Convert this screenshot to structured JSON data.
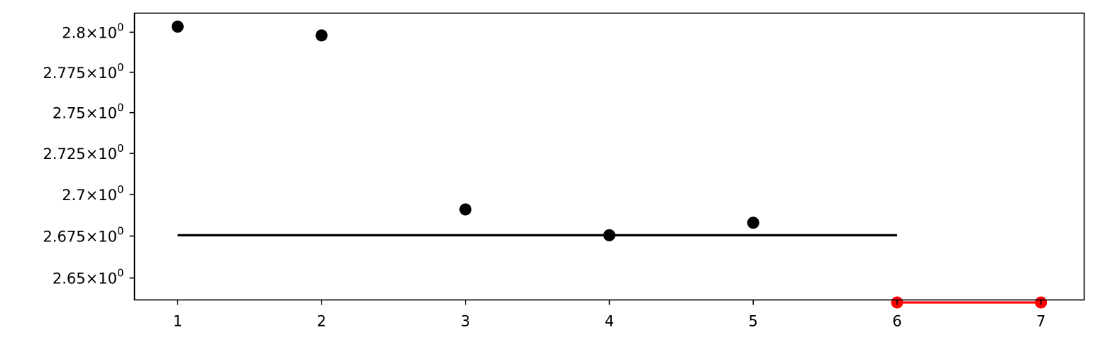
{
  "chart_data": {
    "type": "scatter",
    "title": "",
    "xlabel": "",
    "ylabel": "",
    "yscale": "log",
    "grid": false,
    "xlim": [
      0.7,
      7.3
    ],
    "ylim": [
      2.637,
      2.812
    ],
    "x_ticks": [
      {
        "value": 1,
        "label": "1"
      },
      {
        "value": 2,
        "label": "2"
      },
      {
        "value": 3,
        "label": "3"
      },
      {
        "value": 4,
        "label": "4"
      },
      {
        "value": 5,
        "label": "5"
      },
      {
        "value": 6,
        "label": "6"
      },
      {
        "value": 7,
        "label": "7"
      }
    ],
    "y_ticks": [
      {
        "value": 2.65,
        "mantissa": "2.65",
        "times": "×",
        "base": "10",
        "exponent": "0"
      },
      {
        "value": 2.675,
        "mantissa": "2.675",
        "times": "×",
        "base": "10",
        "exponent": "0"
      },
      {
        "value": 2.7,
        "mantissa": "2.7",
        "times": "×",
        "base": "10",
        "exponent": "0"
      },
      {
        "value": 2.725,
        "mantissa": "2.725",
        "times": "×",
        "base": "10",
        "exponent": "0"
      },
      {
        "value": 2.75,
        "mantissa": "2.75",
        "times": "×",
        "base": "10",
        "exponent": "0"
      },
      {
        "value": 2.775,
        "mantissa": "2.775",
        "times": "×",
        "base": "10",
        "exponent": "0"
      },
      {
        "value": 2.8,
        "mantissa": "2.8",
        "times": "×",
        "base": "10",
        "exponent": "0"
      }
    ],
    "series": [
      {
        "kind": "scatter",
        "color": "#000000",
        "points": [
          {
            "x": 1,
            "y": 2.8035
          },
          {
            "x": 2,
            "y": 2.798
          },
          {
            "x": 3,
            "y": 2.691
          },
          {
            "x": 4,
            "y": 2.6755
          },
          {
            "x": 5,
            "y": 2.683
          }
        ]
      },
      {
        "kind": "line",
        "color": "#000000",
        "points": [
          {
            "x": 1,
            "y": 2.6755
          },
          {
            "x": 6,
            "y": 2.6755
          }
        ]
      },
      {
        "kind": "line-markers",
        "color": "#ff0000",
        "points": [
          {
            "x": 6,
            "y": 2.6355
          },
          {
            "x": 7,
            "y": 2.6355
          }
        ]
      }
    ]
  }
}
